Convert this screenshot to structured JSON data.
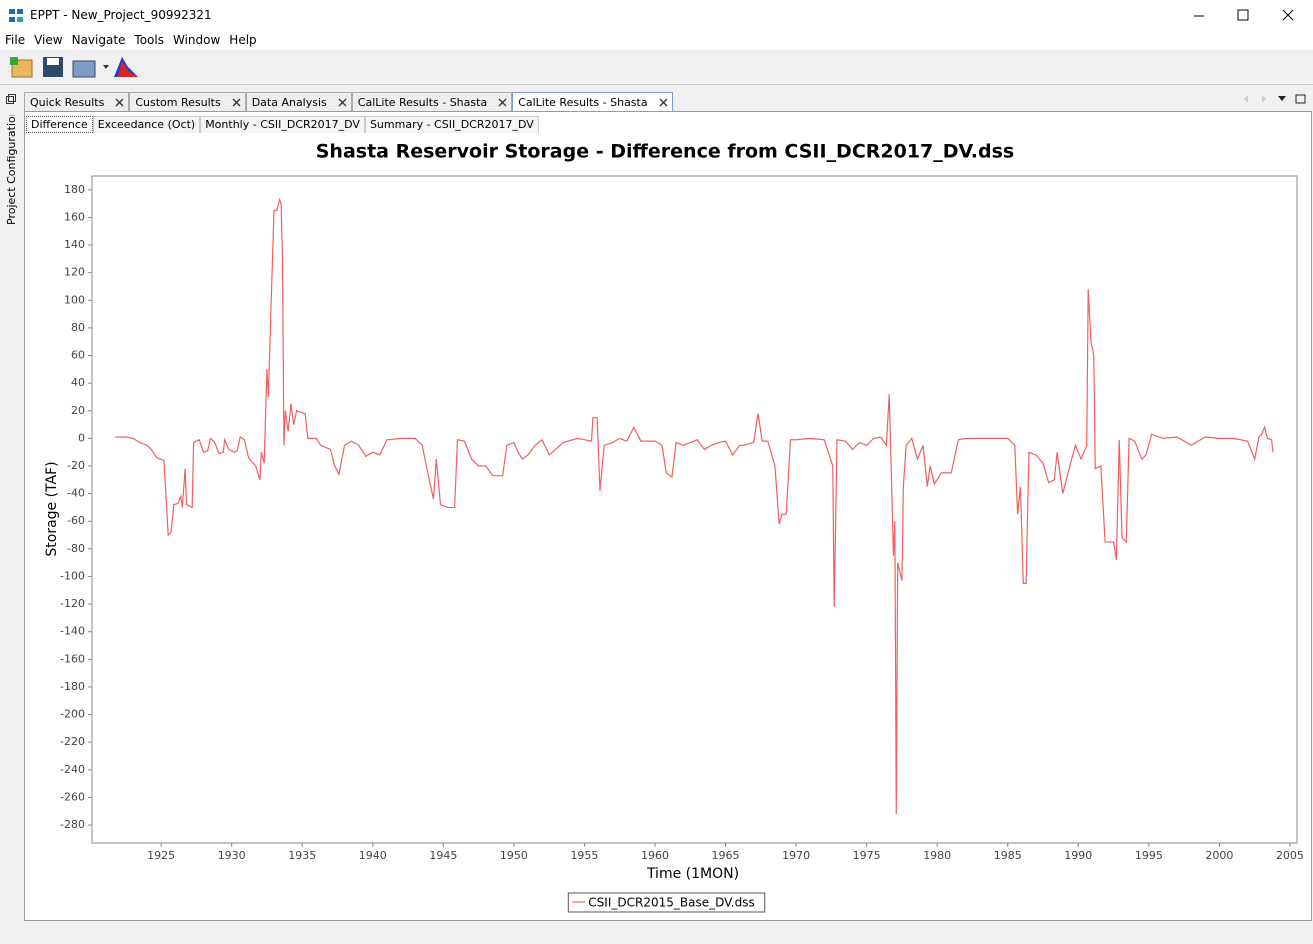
{
  "window": {
    "title": "EPPT - New_Project_90992321"
  },
  "menu": [
    "File",
    "View",
    "Navigate",
    "Tools",
    "Window",
    "Help"
  ],
  "side_panel": "Project Configuration*",
  "tabs": [
    "Quick Results",
    "Custom Results",
    "Data Analysis",
    "CalLite Results - Shasta",
    "CalLite Results - Shasta"
  ],
  "subtabs": [
    "Difference",
    "Exceedance (Oct)",
    "Monthly - CSII_DCR2017_DV",
    "Summary - CSII_DCR2017_DV"
  ],
  "chart_data": {
    "type": "line",
    "title": "Shasta Reservoir Storage - Difference from CSII_DCR2017_DV.dss",
    "x_label": "Time (1MON)",
    "y_label": "Storage (TAF)",
    "x": [
      1921.75,
      1922.5,
      1923,
      1923.5,
      1924,
      1924.3,
      1924.7,
      1925.2,
      1925.5,
      1925.7,
      1925.9,
      1926.2,
      1926.4,
      1926.5,
      1926.7,
      1926.8,
      1927.2,
      1927.3,
      1927.7,
      1928,
      1928.3,
      1928.5,
      1928.8,
      1929.1,
      1929.4,
      1929.5,
      1929.8,
      1930.2,
      1930.4,
      1930.6,
      1930.9,
      1931.2,
      1931.7,
      1932,
      1932.1,
      1932.3,
      1932.5,
      1932.6,
      1932.8,
      1933.0,
      1933.2,
      1933.4,
      1933.5,
      1933.6,
      1933.7,
      1933.8,
      1934.0,
      1934.2,
      1934.4,
      1934.6,
      1935.2,
      1935.4,
      1936,
      1936.3,
      1937,
      1937.3,
      1937.6,
      1938,
      1938.5,
      1939,
      1939.5,
      1940,
      1940.5,
      1941,
      1942,
      1943,
      1943.5,
      1944,
      1944.3,
      1944.5,
      1944.8,
      1945.3,
      1945.8,
      1946,
      1946.5,
      1947,
      1947.5,
      1948,
      1948.5,
      1949.2,
      1949.5,
      1950,
      1950.3,
      1950.6,
      1951,
      1951.5,
      1952,
      1952.5,
      1953.5,
      1954.5,
      1955.5,
      1955.6,
      1955.9,
      1956.1,
      1956.4,
      1957,
      1957.5,
      1958,
      1958.5,
      1959,
      1960,
      1960.5,
      1960.8,
      1961.2,
      1961.5,
      1962,
      1963,
      1963.5,
      1964,
      1964.5,
      1965,
      1965.5,
      1966,
      1966.3,
      1967,
      1967.3,
      1967.6,
      1968,
      1968.5,
      1968.8,
      1969,
      1969.3,
      1969.6,
      1970,
      1971,
      1972,
      1972.6,
      1972.7,
      1972.9,
      1973.5,
      1974,
      1974.5,
      1975,
      1975.5,
      1976,
      1976.4,
      1976.6,
      1976.7,
      1976.9,
      1977.0,
      1977.1,
      1977.2,
      1977.5,
      1977.6,
      1977.8,
      1978.2,
      1978.6,
      1979,
      1979.3,
      1979.5,
      1979.8,
      1980.3,
      1981,
      1981.5,
      1982,
      1983,
      1984,
      1985,
      1985.5,
      1985.7,
      1985.9,
      1986.1,
      1986.3,
      1986.5,
      1987,
      1987.5,
      1987.9,
      1988.3,
      1988.5,
      1988.9,
      1989.4,
      1989.8,
      1990.2,
      1990.6,
      1990.7,
      1990.9,
      1991.1,
      1991.2,
      1991.6,
      1991.9,
      1992.5,
      1992.7,
      1992.9,
      1993.1,
      1993.4,
      1993.6,
      1994,
      1994.5,
      1994.8,
      1995.2,
      1996,
      1997,
      1998,
      1999,
      2000,
      2001,
      2002,
      2002.5,
      2002.8,
      2003,
      2003.2,
      2003.4,
      2003.7,
      2003.8
    ],
    "series": [
      {
        "name": "CSII_DCR2015_Base_DV.dss",
        "color": "#f06060",
        "values": [
          1,
          1,
          0,
          -3,
          -5,
          -8,
          -14,
          -16,
          -70,
          -68,
          -48,
          -47,
          -42,
          -50,
          -22,
          -48,
          -50,
          -3,
          -1,
          -10,
          -9,
          0,
          -3,
          -11,
          -10,
          -1,
          -8,
          -10,
          -9,
          1,
          -1,
          -14,
          -20,
          -30,
          -10,
          -18,
          50,
          30,
          100,
          165,
          165,
          173,
          170,
          130,
          -5,
          20,
          5,
          25,
          10,
          20,
          18,
          0,
          0,
          -5,
          -8,
          -20,
          -26,
          -5,
          -2,
          -5,
          -13,
          -10,
          -12,
          -1,
          0,
          0,
          -5,
          -30,
          -44,
          -15,
          -48,
          -50,
          -50,
          -1,
          -2,
          -15,
          -20,
          -20,
          -27,
          -27,
          -5,
          -3,
          -10,
          -15,
          -12,
          -5,
          -1,
          -12,
          -3,
          0,
          -2,
          15,
          15,
          -38,
          -5,
          -3,
          0,
          -2,
          8,
          -2,
          -2,
          -5,
          -25,
          -28,
          -3,
          -5,
          -1,
          -8,
          -5,
          -3,
          -2,
          -12,
          -5,
          -5,
          -3,
          18,
          -2,
          -2,
          -20,
          -62,
          -55,
          -55,
          -1,
          -1,
          0,
          -1,
          -20,
          -122,
          -1,
          -2,
          -8,
          -3,
          -5,
          0,
          1,
          -5,
          32,
          -5,
          -85,
          -60,
          -272,
          -90,
          -103,
          -35,
          -5,
          0,
          -15,
          -5,
          -35,
          -20,
          -33,
          -25,
          -25,
          -1,
          0,
          0,
          0,
          0,
          -5,
          -55,
          -35,
          -105,
          -105,
          -10,
          -12,
          -18,
          -32,
          -30,
          -10,
          -40,
          -20,
          -5,
          -15,
          -5,
          108,
          70,
          60,
          -22,
          -20,
          -75,
          -75,
          -88,
          -1,
          -72,
          -75,
          0,
          -2,
          -15,
          -12,
          3,
          0,
          1,
          -5,
          1,
          0,
          0,
          -2,
          -15,
          1,
          3,
          8,
          0,
          -1,
          -10
        ]
      }
    ],
    "xlim": [
      1920.1,
      2005.5
    ],
    "xticks": [
      1925,
      1930,
      1935,
      1940,
      1945,
      1950,
      1955,
      1960,
      1965,
      1970,
      1975,
      1980,
      1985,
      1990,
      1995,
      2000,
      2005
    ],
    "ylim": [
      -293,
      190
    ],
    "yticks": [
      180,
      160,
      140,
      120,
      100,
      80,
      60,
      40,
      20,
      0,
      -20,
      -40,
      -60,
      -80,
      -100,
      -120,
      -140,
      -160,
      -180,
      -200,
      -220,
      -240,
      -260,
      -280
    ],
    "grid": false,
    "legend": "bottom"
  }
}
